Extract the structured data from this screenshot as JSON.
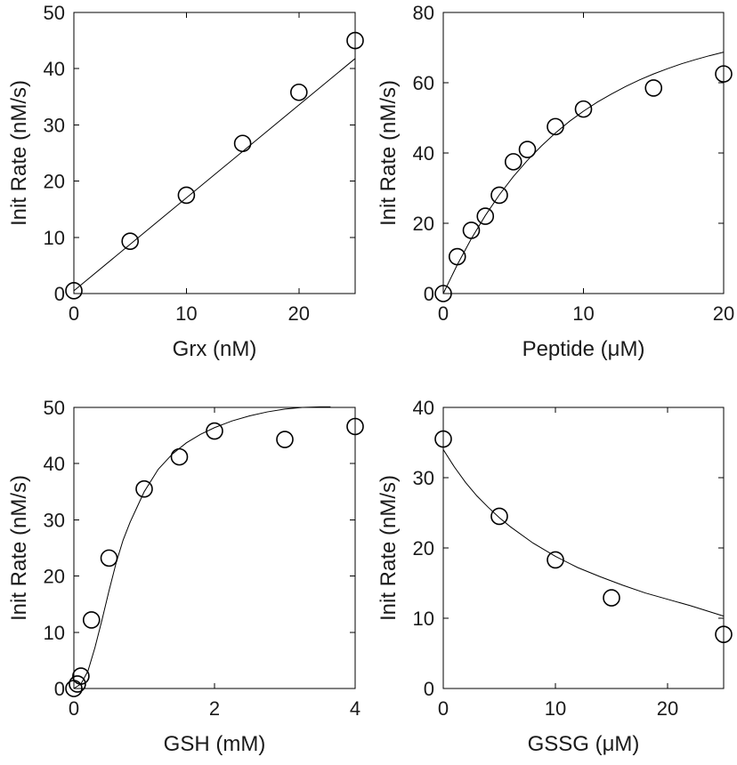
{
  "chart_data": [
    {
      "type": "scatter",
      "xlabel": "Grx (nM)",
      "ylabel": "Init Rate (nM/s)",
      "xlim": [
        0,
        25
      ],
      "ylim": [
        0,
        50
      ],
      "xticks": [
        0,
        10,
        20
      ],
      "yticks": [
        0,
        10,
        20,
        30,
        40,
        50
      ],
      "series": [
        {
          "x": [
            0,
            5,
            10,
            15,
            20,
            25
          ],
          "y": [
            0.5,
            9.3,
            17.5,
            26.7,
            35.8,
            45
          ]
        },
        {
          "x": [
            0,
            25
          ],
          "y": [
            0.5,
            41.8
          ]
        }
      ]
    },
    {
      "type": "scatter",
      "xlabel": "Peptide (μM)",
      "ylabel": "Init Rate (nM/s)",
      "xlim": [
        0,
        20
      ],
      "ylim": [
        0,
        80
      ],
      "xticks": [
        0,
        10,
        20
      ],
      "yticks": [
        0,
        20,
        40,
        60,
        80
      ],
      "series": [
        {
          "x": [
            0,
            1,
            2,
            3,
            4,
            5,
            6,
            8,
            10,
            15,
            20
          ],
          "y": [
            0,
            10.5,
            18,
            22,
            28,
            37.5,
            41,
            47.5,
            52.5,
            58.5,
            62.5
          ]
        },
        {
          "x": [
            0,
            1,
            2,
            3,
            4,
            5,
            6,
            7,
            8,
            9,
            10,
            11,
            12,
            13,
            14,
            15,
            16,
            17,
            18,
            19,
            20
          ],
          "y": [
            0,
            8.2,
            15.6,
            22.2,
            28.1,
            33.3,
            37.9,
            42,
            45.7,
            49,
            51.9,
            54.5,
            56.8,
            58.9,
            60.8,
            62.5,
            64,
            65.4,
            66.6,
            67.7,
            68.7
          ]
        }
      ]
    },
    {
      "type": "scatter",
      "xlabel": "GSH (mM)",
      "ylabel": "Init Rate (nM/s)",
      "xlim": [
        0,
        4
      ],
      "ylim": [
        0,
        50
      ],
      "xticks": [
        0,
        2,
        4
      ],
      "yticks": [
        0,
        10,
        20,
        30,
        40,
        50
      ],
      "series": [
        {
          "x": [
            0,
            0.05,
            0.1,
            0.25,
            0.5,
            1,
            1.5,
            2,
            3,
            4
          ],
          "y": [
            0,
            0.8,
            2.2,
            12.2,
            23.2,
            35.5,
            41.2,
            45.8,
            44.3,
            46.6
          ]
        },
        {
          "x": [
            0,
            0.1,
            0.2,
            0.3,
            0.4,
            0.5,
            0.6,
            0.7,
            0.8,
            0.9,
            1,
            1.2,
            1.4,
            1.6,
            1.8,
            2,
            2.25,
            2.5,
            2.75,
            3,
            3.25,
            3.5,
            3.65
          ],
          "y": [
            0,
            0.8,
            3.1,
            7.3,
            12.2,
            17.4,
            22.3,
            26.4,
            29.6,
            32.3,
            35,
            39,
            41.7,
            43.7,
            45.2,
            46.4,
            47.6,
            48.5,
            49.2,
            49.7,
            50,
            50.1,
            50.1
          ]
        }
      ]
    },
    {
      "type": "scatter",
      "xlabel": "GSSG (μM)",
      "ylabel": "Init Rate (nM/s)",
      "xlim": [
        0,
        25
      ],
      "ylim": [
        0,
        40
      ],
      "xticks": [
        0,
        10,
        20
      ],
      "yticks": [
        0,
        10,
        20,
        30,
        40
      ],
      "series": [
        {
          "x": [
            0,
            5,
            10,
            15,
            25
          ],
          "y": [
            35.5,
            24.5,
            18.3,
            12.9,
            7.7
          ]
        },
        {
          "x": [
            0,
            1,
            2,
            3,
            4,
            5,
            6,
            8,
            10,
            12,
            14,
            16,
            18,
            20,
            22,
            25
          ],
          "y": [
            34,
            31.5,
            29.3,
            27.4,
            25.8,
            24.3,
            23,
            20.7,
            18.8,
            17.2,
            15.9,
            14.7,
            13.6,
            12.7,
            11.8,
            10.3
          ]
        }
      ]
    }
  ]
}
